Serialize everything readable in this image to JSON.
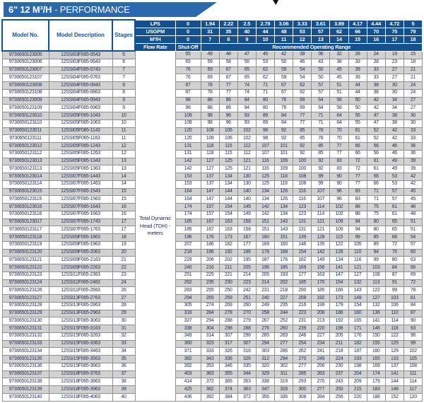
{
  "title": {
    "bold": "6\" 12 M³/H",
    "rest": "- PERFORMANCE"
  },
  "colors": {
    "banner_blue": "#2a69ae",
    "header_blue": "#15508e",
    "row_gray": "#d2d2d2",
    "body_text": "#1c2c4e",
    "header_text": "#ffffff",
    "corner_text": "#1b5292"
  },
  "header": {
    "model_no": "Model No.",
    "model_description": "Model Description",
    "stages": "Stages",
    "unit_rows": [
      {
        "label": "LPS",
        "values": [
          "0",
          "1.94",
          "2.22",
          "2.5",
          "2.78",
          "3.06",
          "3.33",
          "3.61",
          "3.89",
          "4.17",
          "4.44",
          "4.72",
          "5"
        ]
      },
      {
        "label": "USGPM",
        "values": [
          "0",
          "31",
          "35",
          "40",
          "44",
          "48",
          "53",
          "57",
          "62",
          "66",
          "70",
          "75",
          "79"
        ]
      },
      {
        "label": "M³/H",
        "values": [
          "0",
          "7",
          "8",
          "9",
          "10",
          "11",
          "12",
          "13",
          "14",
          "15",
          "16",
          "17",
          "18"
        ]
      }
    ],
    "flow_rate": "Flow Rate",
    "shut_off": "Shut-Off",
    "operating_range": "Recommended Operating Range"
  },
  "tdh_label": "Total Dynamic Head (TDH) - meters",
  "rows": [
    {
      "model": "9730650123005",
      "desc": "12SSI03F065-0543",
      "stages": "5",
      "v": [
        55,
        49,
        48,
        47,
        45,
        42,
        39,
        36,
        32,
        28,
        24,
        19,
        15
      ]
    },
    {
      "model": "9730650123006",
      "desc": "12SSI03F065-0643",
      "stages": "6",
      "v": [
        65,
        59,
        58,
        56,
        53,
        50,
        46,
        43,
        38,
        33,
        28,
        23,
        18
      ]
    },
    {
      "model": "9730650123007",
      "desc": "12SSI04F065-0743",
      "stages": "7",
      "v": [
        76,
        69,
        67,
        65,
        62,
        59,
        54,
        50,
        45,
        39,
        33,
        27,
        21
      ]
    },
    {
      "model": "9730650123107",
      "desc": "12SSI04F065-0763",
      "stages": "7",
      "v": [
        76,
        69,
        67,
        65,
        62,
        59,
        54,
        50,
        45,
        39,
        33,
        27,
        21
      ]
    },
    {
      "model": "9730650123008",
      "desc": "12SSI04F065-0843",
      "stages": "8",
      "v": [
        87,
        78,
        77,
        74,
        71,
        67,
        62,
        57,
        51,
        44,
        38,
        30,
        24
      ]
    },
    {
      "model": "9730650123108",
      "desc": "12SSI04F065-0863",
      "stages": "8",
      "v": [
        87,
        78,
        77,
        74,
        71,
        67,
        62,
        57,
        51,
        44,
        38,
        30,
        24
      ]
    },
    {
      "model": "9730650123009",
      "desc": "12SSI04F065-0943",
      "stages": "9",
      "v": [
        98,
        88,
        86,
        84,
        80,
        76,
        69,
        64,
        58,
        50,
        42,
        34,
        27
      ]
    },
    {
      "model": "9730650123109",
      "desc": "12SSI04F065-0963",
      "stages": "9",
      "v": [
        98,
        88,
        86,
        84,
        80,
        76,
        69,
        64,
        58,
        50,
        42,
        34,
        27
      ]
    },
    {
      "model": "9730650123010",
      "desc": "12SSI05F065-1043",
      "stages": "10",
      "v": [
        109,
        98,
        96,
        93,
        89,
        84,
        77,
        71,
        64,
        55,
        47,
        38,
        30
      ]
    },
    {
      "model": "9730650123110",
      "desc": "12SSI05F065-1063",
      "stages": "10",
      "v": [
        109,
        98,
        96,
        93,
        89,
        84,
        77,
        71,
        64,
        55,
        47,
        38,
        30
      ]
    },
    {
      "model": "9730650123011",
      "desc": "12SSI05F065-1143",
      "stages": "11",
      "v": [
        120,
        108,
        106,
        102,
        98,
        92,
        85,
        78,
        70,
        61,
        52,
        42,
        33
      ]
    },
    {
      "model": "9730650123111",
      "desc": "12SSI05F065-1163",
      "stages": "11",
      "v": [
        120,
        108,
        106,
        102,
        98,
        92,
        85,
        78,
        70,
        61,
        52,
        42,
        33
      ]
    },
    {
      "model": "9730650123012",
      "desc": "12SSI05F065-1243",
      "stages": "12",
      "v": [
        131,
        118,
        115,
        112,
        107,
        101,
        92,
        85,
        77,
        66,
        56,
        46,
        36
      ]
    },
    {
      "model": "9730650123112",
      "desc": "12SSI05F065-1263",
      "stages": "12",
      "v": [
        131,
        118,
        115,
        112,
        107,
        101,
        92,
        85,
        77,
        66,
        56,
        46,
        36
      ]
    },
    {
      "model": "9730650123013",
      "desc": "12SSI05F065-1343",
      "stages": "13",
      "v": [
        142,
        127,
        125,
        121,
        116,
        109,
        100,
        92,
        83,
        72,
        61,
        49,
        39
      ]
    },
    {
      "model": "9730650123113",
      "desc": "12SSI05F065-1363",
      "stages": "13",
      "v": [
        142,
        127,
        125,
        121,
        116,
        109,
        100,
        92,
        83,
        72,
        61,
        49,
        39
      ]
    },
    {
      "model": "9730650123014",
      "desc": "12SSI07F065-1443",
      "stages": "14",
      "v": [
        153,
        137,
        134,
        130,
        125,
        118,
        108,
        99,
        90,
        77,
        66,
        53,
        42
      ]
    },
    {
      "model": "9730650123114",
      "desc": "12SSI07F065-1463",
      "stages": "14",
      "v": [
        153,
        137,
        134,
        130,
        125,
        118,
        108,
        99,
        90,
        77,
        66,
        53,
        42
      ]
    },
    {
      "model": "9730650123015",
      "desc": "12SSI07F065-1543",
      "stages": "15",
      "v": [
        164,
        147,
        144,
        140,
        134,
        126,
        116,
        107,
        96,
        83,
        71,
        57,
        45
      ]
    },
    {
      "model": "9730650123115",
      "desc": "12SSI07F065-1563",
      "stages": "15",
      "v": [
        164,
        147,
        144,
        140,
        134,
        126,
        116,
        107,
        96,
        83,
        71,
        57,
        45
      ]
    },
    {
      "model": "9730650123016",
      "desc": "12SSI07F065-1643",
      "stages": "16",
      "v": [
        174,
        157,
        154,
        149,
        142,
        134,
        123,
        114,
        102,
        88,
        75,
        61,
        48
      ]
    },
    {
      "model": "9730650123116",
      "desc": "12SSI07F065-1663",
      "stages": "16",
      "v": [
        174,
        157,
        154,
        149,
        142,
        134,
        123,
        114,
        102,
        88,
        75,
        61,
        48
      ]
    },
    {
      "model": "9730650123017",
      "desc": "12SSI07F065-1743",
      "stages": "17",
      "v": [
        185,
        167,
        163,
        158,
        151,
        143,
        131,
        121,
        109,
        94,
        80,
        65,
        51
      ]
    },
    {
      "model": "9730650123117",
      "desc": "12SSI07F065-1763",
      "stages": "17",
      "v": [
        185,
        167,
        163,
        158,
        151,
        143,
        131,
        121,
        109,
        94,
        80,
        65,
        51
      ]
    },
    {
      "model": "9730650123118",
      "desc": "12SSI09F065-1863",
      "stages": "18",
      "v": [
        196,
        176,
        173,
        167,
        160,
        151,
        139,
        128,
        115,
        99,
        85,
        68,
        54
      ]
    },
    {
      "model": "9730650123119",
      "desc": "12SSI09F065-1963",
      "stages": "19",
      "v": [
        207,
        186,
        182,
        177,
        169,
        160,
        146,
        135,
        122,
        105,
        89,
        72,
        57
      ]
    },
    {
      "model": "9730650123120",
      "desc": "12SSI09F065-2063",
      "stages": "20",
      "v": [
        218,
        196,
        192,
        186,
        178,
        168,
        154,
        142,
        128,
        110,
        94,
        76,
        60
      ]
    },
    {
      "model": "9730650123121",
      "desc": "12SSI09F065-2163",
      "stages": "21",
      "v": [
        229,
        206,
        202,
        195,
        187,
        176,
        162,
        149,
        134,
        116,
        99,
        80,
        63
      ]
    },
    {
      "model": "9730650123122",
      "desc": "12SSI09F065-2263",
      "stages": "22",
      "v": [
        240,
        216,
        211,
        205,
        196,
        185,
        169,
        156,
        141,
        121,
        103,
        84,
        66
      ]
    },
    {
      "model": "9730650123123",
      "desc": "12SSI11F065-2363",
      "stages": "23",
      "v": [
        251,
        225,
        221,
        214,
        205,
        193,
        177,
        163,
        147,
        127,
        108,
        87,
        69
      ]
    },
    {
      "model": "9730650123124",
      "desc": "12SSI11F065-2463",
      "stages": "24",
      "v": [
        262,
        235,
        230,
        223,
        214,
        202,
        185,
        170,
        154,
        132,
        113,
        91,
        72
      ]
    },
    {
      "model": "9730650123126",
      "desc": "12SSI11F065-2663",
      "stages": "26",
      "v": [
        283,
        255,
        250,
        242,
        231,
        218,
        200,
        185,
        166,
        143,
        122,
        99,
        78
      ]
    },
    {
      "model": "9730650123127",
      "desc": "12SSI13F065-2763",
      "stages": "27",
      "v": [
        294,
        265,
        259,
        251,
        240,
        227,
        208,
        192,
        173,
        149,
        127,
        103,
        81
      ]
    },
    {
      "model": "9730650123128",
      "desc": "12SSI13F065-2863",
      "stages": "28",
      "v": [
        305,
        274,
        269,
        260,
        249,
        235,
        216,
        199,
        179,
        154,
        132,
        106,
        84
      ]
    },
    {
      "model": "9730650123129",
      "desc": "12SSI13F065-2963",
      "stages": "29",
      "v": [
        316,
        284,
        278,
        270,
        258,
        244,
        223,
        206,
        186,
        160,
        136,
        110,
        87
      ]
    },
    {
      "model": "9730650123130",
      "desc": "12SSI13F065-3063",
      "stages": "30",
      "v": [
        327,
        294,
        288,
        279,
        267,
        252,
        231,
        213,
        192,
        165,
        141,
        114,
        90
      ]
    },
    {
      "model": "9730650123131",
      "desc": "12SSI15F065-3163",
      "stages": "31",
      "v": [
        338,
        304,
        298,
        288,
        276,
        260,
        239,
        220,
        198,
        171,
        146,
        118,
        93
      ]
    },
    {
      "model": "9730650123132",
      "desc": "12SSI15F065-3263",
      "stages": "32",
      "v": [
        349,
        314,
        307,
        298,
        285,
        269,
        246,
        227,
        205,
        176,
        150,
        122,
        96
      ]
    },
    {
      "model": "9730650123133",
      "desc": "12SSI15F065-3363",
      "stages": "33",
      "v": [
        360,
        323,
        317,
        307,
        294,
        277,
        254,
        234,
        211,
        182,
        155,
        125,
        99
      ]
    },
    {
      "model": "9730650123134",
      "desc": "12SSI15F065-3463",
      "stages": "34",
      "v": [
        371,
        333,
        326,
        316,
        303,
        286,
        262,
        241,
        218,
        187,
        160,
        129,
        102
      ]
    },
    {
      "model": "9730650123135",
      "desc": "12SSI15F065-3563",
      "stages": "35",
      "v": [
        382,
        343,
        336,
        326,
        312,
        294,
        270,
        249,
        224,
        193,
        165,
        133,
        105
      ]
    },
    {
      "model": "9730650123136",
      "desc": "12SSI15F065-3663",
      "stages": "36",
      "v": [
        392,
        353,
        346,
        335,
        320,
        302,
        277,
        256,
        230,
        198,
        169,
        137,
        108
      ]
    },
    {
      "model": "9730650123137",
      "desc": "12SSI18F065-3763",
      "stages": "37",
      "v": [
        403,
        363,
        355,
        344,
        329,
        311,
        285,
        263,
        237,
        204,
        174,
        141,
        111
      ]
    },
    {
      "model": "9730650123138",
      "desc": "12SSI18F065-3863",
      "stages": "38",
      "v": [
        414,
        372,
        365,
        353,
        338,
        319,
        293,
        270,
        243,
        209,
        179,
        144,
        114
      ]
    },
    {
      "model": "9730650123139",
      "desc": "12SSI18F065-3963",
      "stages": "39",
      "v": [
        425,
        382,
        374,
        363,
        347,
        328,
        300,
        277,
        250,
        215,
        183,
        148,
        117
      ]
    },
    {
      "model": "9730650123140",
      "desc": "12SSI18F065-4063",
      "stages": "40",
      "v": [
        436,
        392,
        384,
        372,
        356,
        336,
        308,
        284,
        256,
        220,
        188,
        152,
        120
      ]
    }
  ]
}
